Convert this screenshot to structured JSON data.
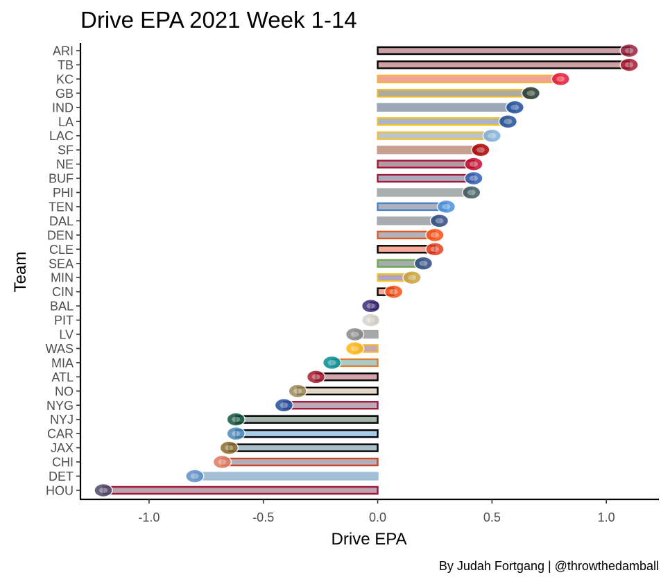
{
  "chart_data": {
    "type": "bar",
    "orientation": "horizontal",
    "title": "Drive EPA 2021 Week 1-14",
    "xlabel": "Drive EPA",
    "ylabel": "Team",
    "caption": "By Judah Fortgang | @throwthedamball",
    "xlim": [
      -1.3,
      1.23
    ],
    "x_ticks": [
      "-1.0",
      "-0.5",
      "0.0",
      "0.5",
      "1.0"
    ],
    "x_tick_values": [
      -1.0,
      -0.5,
      0.0,
      0.5,
      1.0
    ],
    "grid": false,
    "legend": "none",
    "series": [
      {
        "team": "ARI",
        "value": 1.1,
        "fill": "#c9a0a8",
        "outline": "#000000",
        "logo": "cardinal-head"
      },
      {
        "team": "TB",
        "value": 1.1,
        "fill": "#cfa1a4",
        "outline": "#000000",
        "logo": "buccaneers-flag"
      },
      {
        "team": "KC",
        "value": 0.8,
        "fill": "#f4a39a",
        "outline": "#f2b632",
        "logo": "arrowhead"
      },
      {
        "team": "GB",
        "value": 0.67,
        "fill": "#a8aca3",
        "outline": "#f2b632",
        "logo": "g-oval"
      },
      {
        "team": "IND",
        "value": 0.6,
        "fill": "#9ba6b7",
        "outline": "#9ba6b7",
        "logo": "horseshoe"
      },
      {
        "team": "LA",
        "value": 0.57,
        "fill": "#aab4c7",
        "outline": "#f2c230",
        "logo": "la-monogram"
      },
      {
        "team": "LAC",
        "value": 0.5,
        "fill": "#b9c4cc",
        "outline": "#f2c230",
        "logo": "lightning-bolt"
      },
      {
        "team": "SF",
        "value": 0.45,
        "fill": "#c8a08f",
        "outline": "#c8a08f",
        "logo": "sf-oval"
      },
      {
        "team": "NE",
        "value": 0.42,
        "fill": "#b39aa3",
        "outline": "#a3163a",
        "logo": "flying-elvis"
      },
      {
        "team": "BUF",
        "value": 0.42,
        "fill": "#adaabd",
        "outline": "#a3163a",
        "logo": "charging-buffalo"
      },
      {
        "team": "PHI",
        "value": 0.41,
        "fill": "#a7b0ae",
        "outline": "#a7b0ae",
        "logo": "eagle-head"
      },
      {
        "team": "TEN",
        "value": 0.3,
        "fill": "#adb3bc",
        "outline": "#4d82c4",
        "logo": "t-flame"
      },
      {
        "team": "DAL",
        "value": 0.27,
        "fill": "#a8abaf",
        "outline": "#a8abaf",
        "logo": "star"
      },
      {
        "team": "DEN",
        "value": 0.25,
        "fill": "#b2b4bd",
        "outline": "#e0572a",
        "logo": "bronco-head"
      },
      {
        "team": "CLE",
        "value": 0.25,
        "fill": "#f7aa98",
        "outline": "#000000",
        "logo": "helmet"
      },
      {
        "team": "SEA",
        "value": 0.2,
        "fill": "#a5aab4",
        "outline": "#6bab48",
        "logo": "seahawk-head"
      },
      {
        "team": "MIN",
        "value": 0.15,
        "fill": "#b3a5c2",
        "outline": "#f2c230",
        "logo": "viking-head"
      },
      {
        "team": "CIN",
        "value": 0.07,
        "fill": "#f7aa98",
        "outline": "#000000",
        "logo": "bengals-b"
      },
      {
        "team": "BAL",
        "value": -0.03,
        "fill": "#b5aac6",
        "outline": "#000000",
        "logo": "raven-head"
      },
      {
        "team": "PIT",
        "value": -0.03,
        "fill": "#a9aaaa",
        "outline": "#f2b632",
        "logo": "steelers-mark"
      },
      {
        "team": "LV",
        "value": -0.1,
        "fill": "#a5a7a9",
        "outline": "#a5a7a9",
        "logo": "raiders-shield"
      },
      {
        "team": "WAS",
        "value": -0.1,
        "fill": "#c2a8b0",
        "outline": "#f2b632",
        "logo": "w-mark"
      },
      {
        "team": "MIA",
        "value": -0.2,
        "fill": "#a9ccc9",
        "outline": "#e37f33",
        "logo": "dolphin"
      },
      {
        "team": "ATL",
        "value": -0.27,
        "fill": "#d2a5ad",
        "outline": "#000000",
        "logo": "falcon"
      },
      {
        "team": "NO",
        "value": -0.35,
        "fill": "#e4d8c9",
        "outline": "#000000",
        "logo": "fleur-de-lis"
      },
      {
        "team": "NYG",
        "value": -0.41,
        "fill": "#bda8b9",
        "outline": "#a3163a",
        "logo": "ny-monogram"
      },
      {
        "team": "NYJ",
        "value": -0.62,
        "fill": "#a5b4ad",
        "outline": "#000000",
        "logo": "jets-oval"
      },
      {
        "team": "CAR",
        "value": -0.62,
        "fill": "#a8cbe8",
        "outline": "#000000",
        "logo": "panther-head"
      },
      {
        "team": "JAX",
        "value": -0.65,
        "fill": "#a7bfc6",
        "outline": "#000000",
        "logo": "jaguar-head"
      },
      {
        "team": "CHI",
        "value": -0.68,
        "fill": "#b4b0ba",
        "outline": "#c9452b",
        "logo": "c-mark"
      },
      {
        "team": "DET",
        "value": -0.8,
        "fill": "#a3bed7",
        "outline": "#a3bed7",
        "logo": "lion"
      },
      {
        "team": "HOU",
        "value": -1.2,
        "fill": "#bca3b0",
        "outline": "#a3163a",
        "logo": "bull-head"
      }
    ],
    "logo_colors": {
      "ARI": "#97233f",
      "TB": "#a71930",
      "KC": "#e31837",
      "GB": "#203731",
      "IND": "#1e4d9b",
      "LA": "#1e4d9b",
      "LAC": "#80b0e0",
      "SF": "#aa0000",
      "NE": "#c60c30",
      "BUF": "#2d5fb4",
      "PHI": "#3d5a5e",
      "TEN": "#4b92db",
      "DAL": "#2c4a82",
      "DEN": "#fb4f14",
      "CLE": "#e83e1e",
      "SEA": "#2c4a82",
      "MIN": "#caa23f",
      "CIN": "#fb4f14",
      "BAL": "#3b2a7a",
      "PIT": "#d4d4d4",
      "LV": "#888888",
      "WAS": "#ffb612",
      "MIA": "#008e97",
      "ATL": "#a71930",
      "NO": "#9f8958",
      "NYG": "#1e4d9b",
      "NYJ": "#125740",
      "CAR": "#4a8abc",
      "JAX": "#8a6a2a",
      "CHI": "#e07a5f",
      "DET": "#5f8fc8",
      "HOU": "#4a4a6a"
    }
  }
}
